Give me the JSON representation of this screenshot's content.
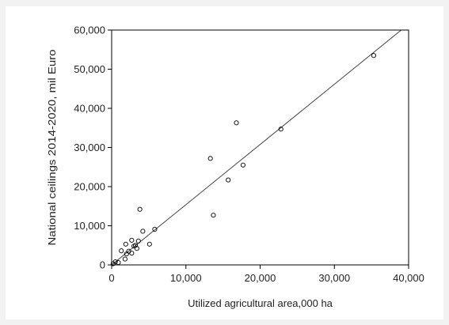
{
  "chart_data": {
    "type": "scatter",
    "title": "",
    "xlabel": "Utilized agricultural area,000 ha",
    "ylabel": "National ceilings 2014-2020, mil Euro",
    "xlim": [
      0,
      40000
    ],
    "ylim": [
      0,
      60000
    ],
    "x_ticks": [
      0,
      10000,
      20000,
      30000,
      40000
    ],
    "y_ticks": [
      0,
      10000,
      20000,
      30000,
      40000,
      50000,
      60000
    ],
    "x_tick_labels": [
      "0",
      "10,000",
      "20,000",
      "30,000",
      "40,000"
    ],
    "y_tick_labels": [
      "0",
      "10,000",
      "20,000",
      "30,000",
      "40,000",
      "50,000",
      "60,000"
    ],
    "grid": false,
    "legend": "none",
    "points": [
      {
        "x": 200,
        "y": 300
      },
      {
        "x": 500,
        "y": 800
      },
      {
        "x": 900,
        "y": 600
      },
      {
        "x": 1300,
        "y": 3600
      },
      {
        "x": 1800,
        "y": 1500
      },
      {
        "x": 1900,
        "y": 5300
      },
      {
        "x": 2000,
        "y": 2800
      },
      {
        "x": 2300,
        "y": 3500
      },
      {
        "x": 2700,
        "y": 3000
      },
      {
        "x": 2700,
        "y": 6300
      },
      {
        "x": 3000,
        "y": 4800
      },
      {
        "x": 3200,
        "y": 5000
      },
      {
        "x": 3400,
        "y": 4200
      },
      {
        "x": 3600,
        "y": 6100
      },
      {
        "x": 3800,
        "y": 14200
      },
      {
        "x": 4200,
        "y": 8600
      },
      {
        "x": 5100,
        "y": 5300
      },
      {
        "x": 5800,
        "y": 9100
      },
      {
        "x": 13300,
        "y": 27200
      },
      {
        "x": 13700,
        "y": 12700
      },
      {
        "x": 15700,
        "y": 21700
      },
      {
        "x": 16800,
        "y": 36300
      },
      {
        "x": 17700,
        "y": 25500
      },
      {
        "x": 22800,
        "y": 34700
      },
      {
        "x": 35300,
        "y": 53500
      }
    ],
    "fit_line": {
      "x": [
        0,
        39000
      ],
      "y": [
        0,
        60000
      ]
    },
    "colors": {
      "marker": "#000000",
      "line": "#333333",
      "background": "#f2f2f2",
      "plot_bg": "#ffffff"
    }
  }
}
